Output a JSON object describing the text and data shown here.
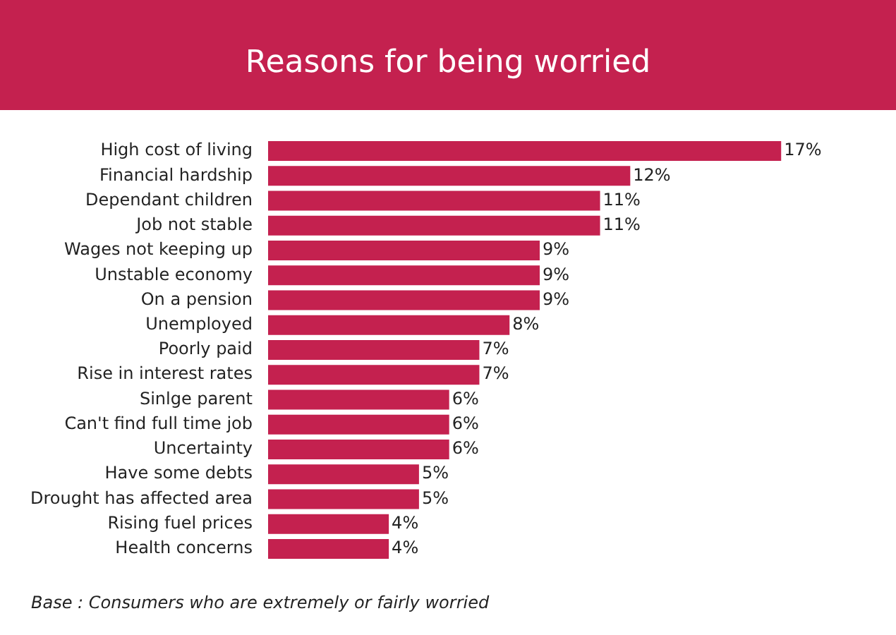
{
  "chart_data": {
    "type": "bar",
    "orientation": "horizontal",
    "title": "Reasons for being worried",
    "categories": [
      "High cost of living",
      "Financial hardship",
      "Dependant children",
      "Job not stable",
      "Wages not keeping up",
      "Unstable economy",
      "On a pension",
      "Unemployed",
      "Poorly paid",
      "Rise in interest rates",
      "Sinlge parent",
      "Can't find full time job",
      "Uncertainty",
      "Have some debts",
      "Drought has affected area",
      "Rising fuel prices",
      "Health concerns"
    ],
    "values": [
      17,
      12,
      11,
      11,
      9,
      9,
      9,
      8,
      7,
      7,
      6,
      6,
      6,
      5,
      5,
      4,
      4
    ],
    "value_labels": [
      "17%",
      "12%",
      "11%",
      "11%",
      "9%",
      "9%",
      "9%",
      "8%",
      "7%",
      "7%",
      "6%",
      "6%",
      "6%",
      "5%",
      "5%",
      "4%",
      "4%"
    ],
    "color": "#c4214f",
    "annotations": [
      "Base : Consumers who are extremely or fairly worried"
    ]
  }
}
